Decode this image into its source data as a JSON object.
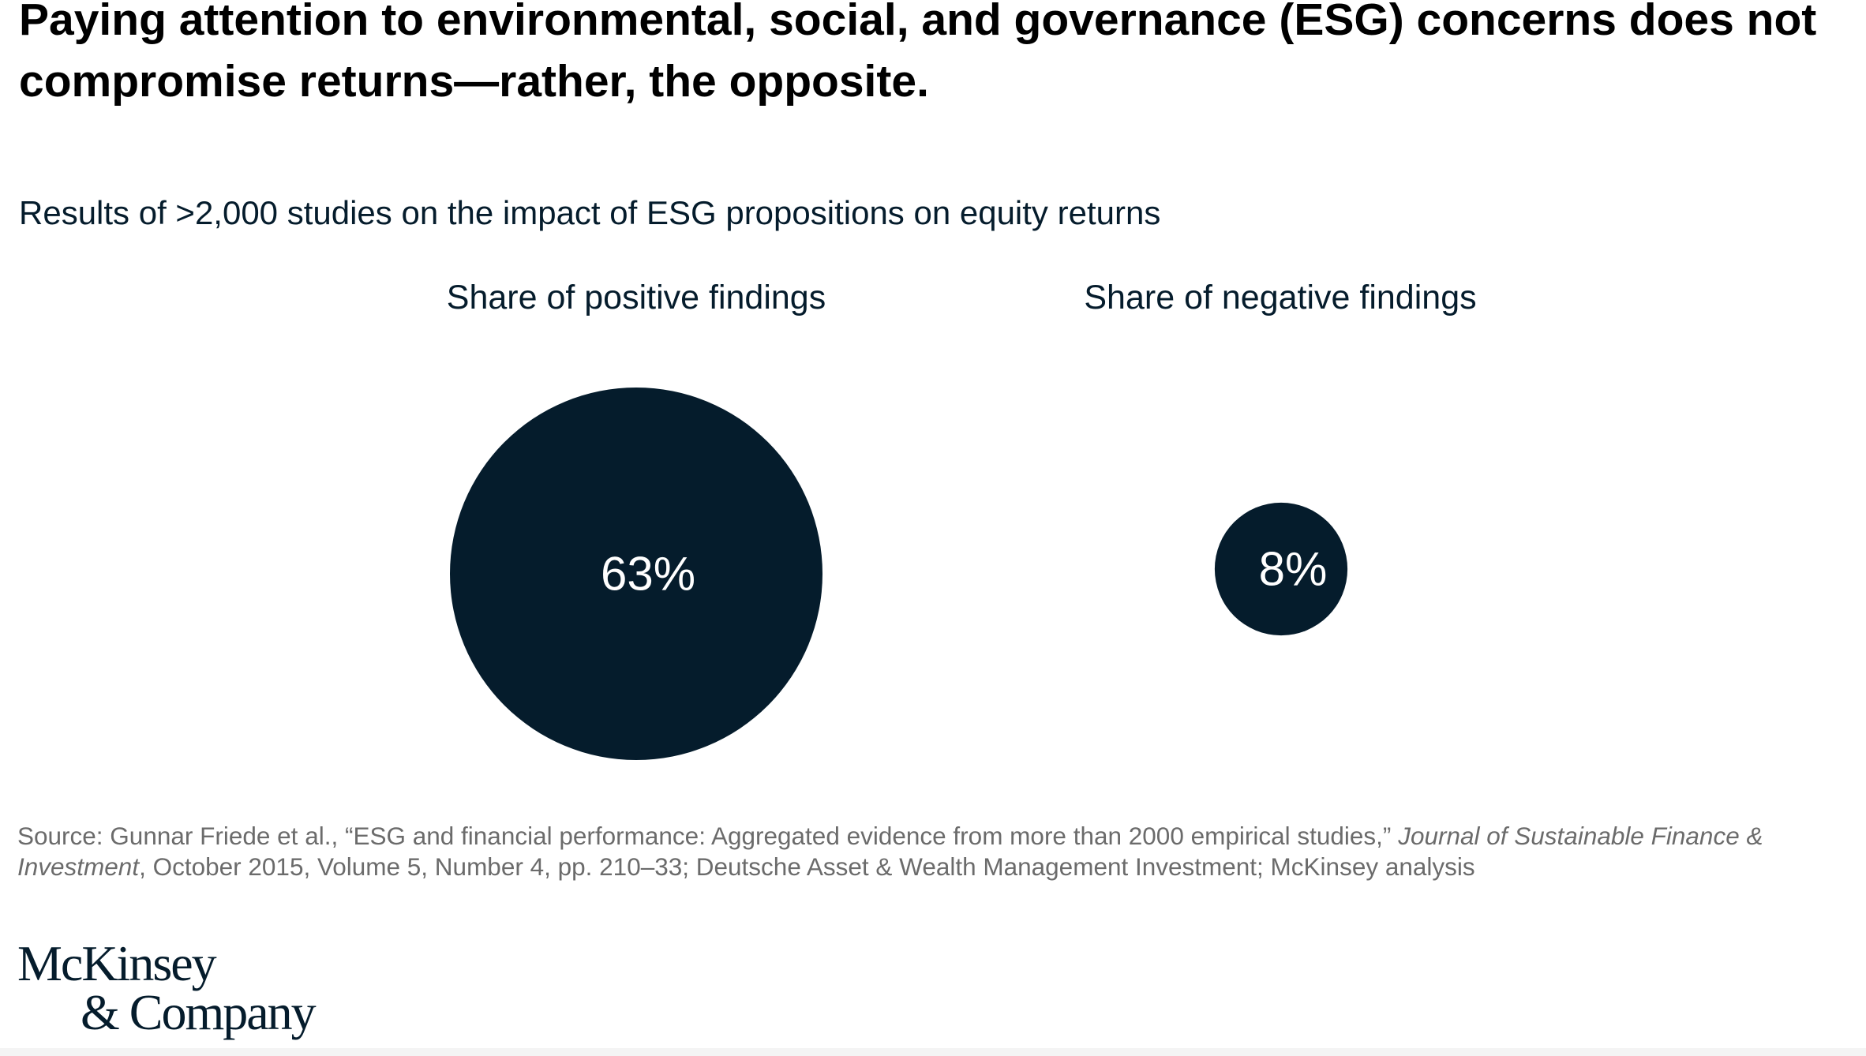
{
  "title": "Paying attention to environmental, social, and governance (ESG) concerns does not compromise returns—rather, the opposite.",
  "subtitle": "Results of >2,000 studies on the impact of ESG propositions on equity returns",
  "chart_data": {
    "type": "bubble",
    "unit": "%",
    "color": "#051c2c",
    "label_color": "#ffffff",
    "series": [
      {
        "category": "Share of positive findings",
        "value": 63,
        "label": "63%"
      },
      {
        "category": "Share of negative findings",
        "value": 8,
        "label": "8%"
      }
    ]
  },
  "source": {
    "prefix": "Source: Gunnar Friede et al., “ESG and financial performance: Aggregated evidence from more than 2000 empirical studies,” ",
    "journal": "Journal of Sustainable Finance & Investment",
    "suffix": ", October 2015, Volume 5, Number 4, pp. 210–33; Deutsche Asset & Wealth Management Investment; McKinsey analysis"
  },
  "logo": {
    "line1": "McKinsey",
    "line2": "& Company"
  }
}
